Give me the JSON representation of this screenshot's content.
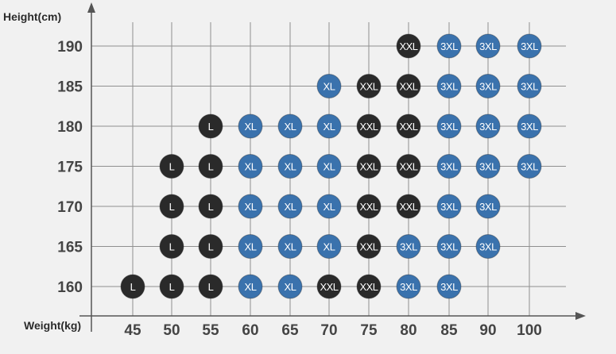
{
  "chart_data": {
    "type": "scatter",
    "title": "",
    "xlabel": "Weight(kg)",
    "ylabel": "Height(cm)",
    "x_ticks": [
      "45",
      "50",
      "55",
      "60",
      "65",
      "70",
      "75",
      "80",
      "85",
      "90",
      "100"
    ],
    "y_ticks": [
      "160",
      "165",
      "170",
      "175",
      "180",
      "185",
      "190"
    ],
    "grid": true,
    "colors": {
      "L": "#2a2a2a",
      "XL": "#3a72ad",
      "XXL": "#2a2a2a",
      "3XL": "#3a72ad"
    },
    "points": [
      {
        "weight": 45,
        "height": 160,
        "size": "L"
      },
      {
        "weight": 50,
        "height": 160,
        "size": "L"
      },
      {
        "weight": 55,
        "height": 160,
        "size": "L"
      },
      {
        "weight": 60,
        "height": 160,
        "size": "XL"
      },
      {
        "weight": 65,
        "height": 160,
        "size": "XL"
      },
      {
        "weight": 70,
        "height": 160,
        "size": "XXL"
      },
      {
        "weight": 75,
        "height": 160,
        "size": "XXL"
      },
      {
        "weight": 80,
        "height": 160,
        "size": "3XL"
      },
      {
        "weight": 85,
        "height": 160,
        "size": "3XL"
      },
      {
        "weight": 50,
        "height": 165,
        "size": "L"
      },
      {
        "weight": 55,
        "height": 165,
        "size": "L"
      },
      {
        "weight": 60,
        "height": 165,
        "size": "XL"
      },
      {
        "weight": 65,
        "height": 165,
        "size": "XL"
      },
      {
        "weight": 70,
        "height": 165,
        "size": "XL"
      },
      {
        "weight": 75,
        "height": 165,
        "size": "XXL"
      },
      {
        "weight": 80,
        "height": 165,
        "size": "3XL"
      },
      {
        "weight": 85,
        "height": 165,
        "size": "3XL"
      },
      {
        "weight": 90,
        "height": 165,
        "size": "3XL"
      },
      {
        "weight": 50,
        "height": 170,
        "size": "L"
      },
      {
        "weight": 55,
        "height": 170,
        "size": "L"
      },
      {
        "weight": 60,
        "height": 170,
        "size": "XL"
      },
      {
        "weight": 65,
        "height": 170,
        "size": "XL"
      },
      {
        "weight": 70,
        "height": 170,
        "size": "XL"
      },
      {
        "weight": 75,
        "height": 170,
        "size": "XXL"
      },
      {
        "weight": 80,
        "height": 170,
        "size": "XXL"
      },
      {
        "weight": 85,
        "height": 170,
        "size": "3XL"
      },
      {
        "weight": 90,
        "height": 170,
        "size": "3XL"
      },
      {
        "weight": 50,
        "height": 175,
        "size": "L"
      },
      {
        "weight": 55,
        "height": 175,
        "size": "L"
      },
      {
        "weight": 60,
        "height": 175,
        "size": "XL"
      },
      {
        "weight": 65,
        "height": 175,
        "size": "XL"
      },
      {
        "weight": 70,
        "height": 175,
        "size": "XL"
      },
      {
        "weight": 75,
        "height": 175,
        "size": "XXL"
      },
      {
        "weight": 80,
        "height": 175,
        "size": "XXL"
      },
      {
        "weight": 85,
        "height": 175,
        "size": "3XL"
      },
      {
        "weight": 90,
        "height": 175,
        "size": "3XL"
      },
      {
        "weight": 100,
        "height": 175,
        "size": "3XL"
      },
      {
        "weight": 55,
        "height": 180,
        "size": "L"
      },
      {
        "weight": 60,
        "height": 180,
        "size": "XL"
      },
      {
        "weight": 65,
        "height": 180,
        "size": "XL"
      },
      {
        "weight": 70,
        "height": 180,
        "size": "XL"
      },
      {
        "weight": 75,
        "height": 180,
        "size": "XXL"
      },
      {
        "weight": 80,
        "height": 180,
        "size": "XXL"
      },
      {
        "weight": 85,
        "height": 180,
        "size": "3XL"
      },
      {
        "weight": 90,
        "height": 180,
        "size": "3XL"
      },
      {
        "weight": 100,
        "height": 180,
        "size": "3XL"
      },
      {
        "weight": 70,
        "height": 185,
        "size": "XL"
      },
      {
        "weight": 75,
        "height": 185,
        "size": "XXL"
      },
      {
        "weight": 80,
        "height": 185,
        "size": "XXL"
      },
      {
        "weight": 85,
        "height": 185,
        "size": "3XL"
      },
      {
        "weight": 90,
        "height": 185,
        "size": "3XL"
      },
      {
        "weight": 100,
        "height": 185,
        "size": "3XL"
      },
      {
        "weight": 80,
        "height": 190,
        "size": "XXL"
      },
      {
        "weight": 85,
        "height": 190,
        "size": "3XL"
      },
      {
        "weight": 90,
        "height": 190,
        "size": "3XL"
      },
      {
        "weight": 100,
        "height": 190,
        "size": "3XL"
      }
    ]
  }
}
